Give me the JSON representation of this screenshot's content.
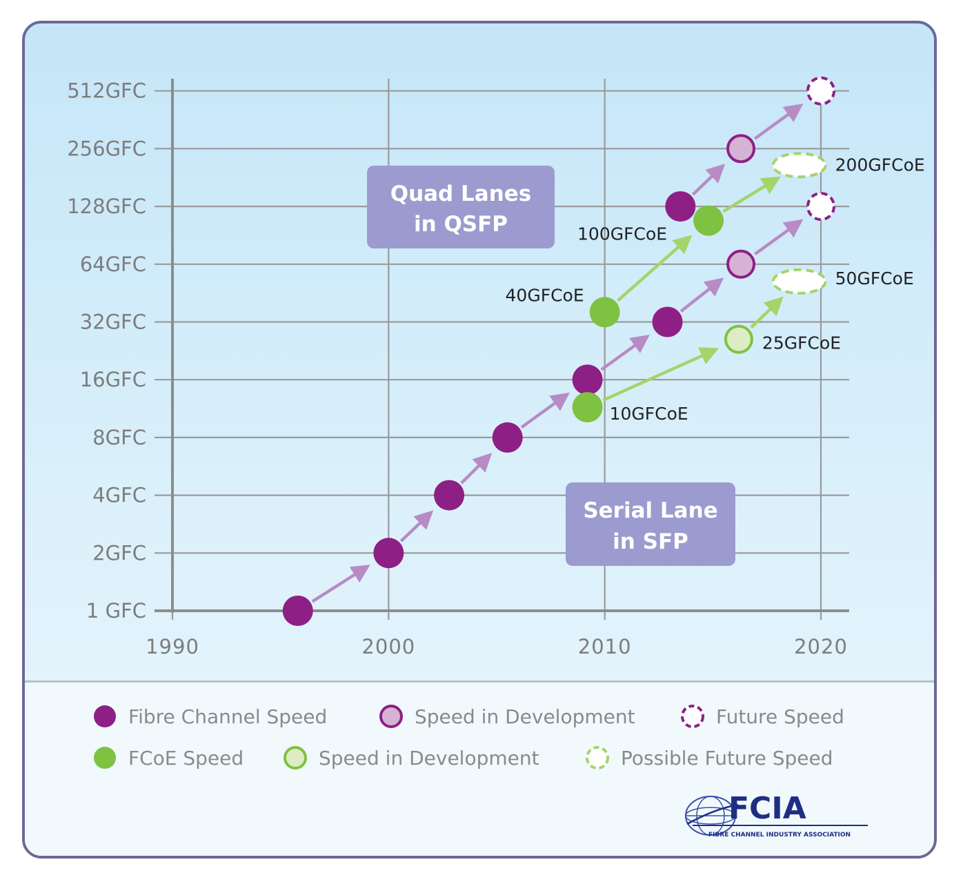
{
  "colors": {
    "fc_purple": "#8e1f85",
    "dev_purple_fill": "#d6b3d4",
    "fcoe_green": "#7fc241",
    "dev_green_fill": "#dcedc4",
    "arrow_purple": "#b88bc4",
    "arrow_green": "#a4d46a",
    "grid": "#9a9a9a",
    "box": "#9b9bcf"
  },
  "chart_data": {
    "type": "scatter",
    "x_axis": {
      "ticks": [
        "1990",
        "2000",
        "2010",
        "2020"
      ],
      "lim": [
        1990,
        2021
      ]
    },
    "y_axis": {
      "scale": "log2",
      "ticks": [
        "1 GFC",
        "2GFC",
        "4GFC",
        "8GFC",
        "16GFC",
        "32GFC",
        "64GFC",
        "128GFC",
        "256GFC",
        "512GFC"
      ]
    },
    "grid": true,
    "series": [
      {
        "name": "Fibre Channel Speed",
        "style": "fc",
        "points": [
          {
            "x": 1995.8,
            "y": 1
          },
          {
            "x": 2000,
            "y": 2
          },
          {
            "x": 2002.8,
            "y": 4
          },
          {
            "x": 2005.5,
            "y": 8
          },
          {
            "x": 2009.2,
            "y": 16
          },
          {
            "x": 2012.9,
            "y": 32
          },
          {
            "x": 2013.5,
            "y": 128
          }
        ]
      },
      {
        "name": "Speed in Development",
        "style": "fc_dev",
        "points": [
          {
            "x": 2016.3,
            "y": 64
          },
          {
            "x": 2016.3,
            "y": 256
          }
        ]
      },
      {
        "name": "Future Speed",
        "style": "fc_future",
        "points": [
          {
            "x": 2020,
            "y": 128
          },
          {
            "x": 2020,
            "y": 512
          }
        ]
      },
      {
        "name": "FCoE Speed",
        "style": "fcoe",
        "points": [
          {
            "x": 2009.2,
            "y": 11.5,
            "label": "10GFCoE"
          },
          {
            "x": 2010,
            "y": 36,
            "label": "40GFCoE"
          },
          {
            "x": 2014.8,
            "y": 108,
            "label": "100GFCoE"
          }
        ]
      },
      {
        "name": "Speed in Development",
        "style": "fcoe_dev",
        "points": [
          {
            "x": 2016.2,
            "y": 26,
            "label": "25GFCoE"
          }
        ]
      },
      {
        "name": "Possible Future Speed",
        "style": "fcoe_future",
        "points": [
          {
            "x": 2019,
            "y": 52,
            "label": "50GFCoE"
          },
          {
            "x": 2019,
            "y": 210,
            "label": "200GFCoE"
          }
        ]
      }
    ],
    "arrows": [
      {
        "color": "purple",
        "from": [
          1995.8,
          1
        ],
        "to": [
          2000,
          2
        ]
      },
      {
        "color": "purple",
        "from": [
          2000,
          2
        ],
        "to": [
          2002.8,
          4
        ]
      },
      {
        "color": "purple",
        "from": [
          2002.8,
          4
        ],
        "to": [
          2005.5,
          8
        ]
      },
      {
        "color": "purple",
        "from": [
          2005.5,
          8
        ],
        "to": [
          2009.2,
          16
        ]
      },
      {
        "color": "purple",
        "from": [
          2009.2,
          16
        ],
        "to": [
          2012.9,
          32
        ]
      },
      {
        "color": "purple",
        "from": [
          2012.9,
          32
        ],
        "to": [
          2016.3,
          64
        ]
      },
      {
        "color": "purple",
        "from": [
          2016.3,
          64
        ],
        "to": [
          2020,
          128
        ]
      },
      {
        "color": "purple",
        "from": [
          2013.5,
          128
        ],
        "to": [
          2016.3,
          256
        ]
      },
      {
        "color": "purple",
        "from": [
          2016.3,
          256
        ],
        "to": [
          2020,
          512
        ]
      },
      {
        "color": "green",
        "from": [
          2009.2,
          11.5
        ],
        "to": [
          2016.2,
          26
        ]
      },
      {
        "color": "green",
        "from": [
          2016.2,
          26
        ],
        "to": [
          2019,
          52
        ]
      },
      {
        "color": "green",
        "from": [
          2010,
          36
        ],
        "to": [
          2014.8,
          108
        ]
      },
      {
        "color": "green",
        "from": [
          2014.8,
          108
        ],
        "to": [
          2019,
          210
        ]
      }
    ],
    "annotations": [
      {
        "lines": [
          "Quad Lanes",
          "in QSFP"
        ]
      },
      {
        "lines": [
          "Serial Lane",
          "in SFP"
        ]
      }
    ]
  },
  "legend": {
    "row1": [
      {
        "label": "Fibre Channel Speed",
        "style": "fc"
      },
      {
        "label": "Speed in Development",
        "style": "fc_dev"
      },
      {
        "label": "Future Speed",
        "style": "fc_future"
      }
    ],
    "row2": [
      {
        "label": "FCoE Speed",
        "style": "fcoe"
      },
      {
        "label": "Speed in Development",
        "style": "fcoe_dev"
      },
      {
        "label": "Possible Future Speed",
        "style": "fcoe_future"
      }
    ]
  },
  "logo": {
    "wordmark": "FCIA",
    "tagline": "FIBRE CHANNEL INDUSTRY ASSOCIATION",
    "icon": "globe-icon"
  }
}
